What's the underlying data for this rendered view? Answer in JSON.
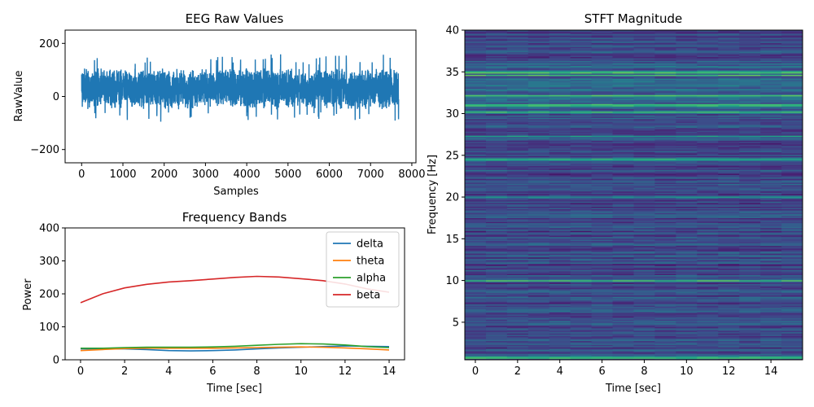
{
  "chart_data": [
    {
      "type": "line",
      "title": "EEG Raw Values",
      "xlabel": "Samples",
      "ylabel": "RawValue",
      "xlim": [
        -400,
        8100
      ],
      "ylim": [
        -250,
        250
      ],
      "xticks": [
        0,
        1000,
        2000,
        3000,
        4000,
        5000,
        6000,
        7000,
        8000
      ],
      "xtick_labels": [
        "0",
        "1000",
        "2000",
        "3000",
        "4000",
        "5000",
        "6000",
        "7000",
        "8000"
      ],
      "yticks": [
        200,
        0,
        -200
      ],
      "ytick_labels": [
        "200",
        "0",
        "−200"
      ],
      "grid": false,
      "color": "#1f77b4",
      "series": [
        {
          "sample_count": 7680,
          "approx_envelope": {
            "mean": 30,
            "typical_range": [
              -50,
              140
            ],
            "extremes": [
              -100,
              195
            ]
          }
        }
      ]
    },
    {
      "type": "line",
      "title": "Frequency Bands",
      "xlabel": "Time [sec]",
      "ylabel": "Power",
      "xlim": [
        -0.7,
        14.7
      ],
      "ylim": [
        0,
        400
      ],
      "xticks": [
        0,
        2,
        4,
        6,
        8,
        10,
        12,
        14
      ],
      "xtick_labels": [
        "0",
        "2",
        "4",
        "6",
        "8",
        "10",
        "12",
        "14"
      ],
      "yticks": [
        0,
        100,
        200,
        300,
        400
      ],
      "ytick_labels": [
        "0",
        "100",
        "200",
        "300",
        "400"
      ],
      "x": [
        0,
        1,
        2,
        3,
        4,
        5,
        6,
        7,
        8,
        9,
        10,
        11,
        12,
        13,
        14
      ],
      "legend_position": "top-right",
      "grid": false,
      "series": [
        {
          "name": "delta",
          "color": "#1f77b4",
          "values": [
            33,
            33,
            33,
            31,
            28,
            27,
            28,
            30,
            33,
            36,
            38,
            40,
            42,
            41,
            40
          ]
        },
        {
          "name": "theta",
          "color": "#ff7f0e",
          "values": [
            28,
            31,
            34,
            35,
            35,
            35,
            35,
            36,
            37,
            38,
            39,
            38,
            36,
            33,
            30
          ]
        },
        {
          "name": "alpha",
          "color": "#2ca02c",
          "values": [
            35,
            35,
            37,
            38,
            38,
            38,
            39,
            41,
            44,
            47,
            49,
            48,
            45,
            40,
            37
          ]
        },
        {
          "name": "beta",
          "color": "#d62728",
          "values": [
            173,
            200,
            218,
            229,
            236,
            240,
            245,
            250,
            253,
            251,
            246,
            240,
            230,
            215,
            205
          ]
        }
      ]
    },
    {
      "type": "heatmap",
      "title": "STFT Magnitude",
      "xlabel": "Time [sec]",
      "ylabel": "Frequency [Hz]",
      "xlim": [
        -0.5,
        15.5
      ],
      "ylim": [
        0.5,
        40
      ],
      "xticks": [
        0,
        2,
        4,
        6,
        8,
        10,
        12,
        14
      ],
      "xtick_labels": [
        "0",
        "2",
        "4",
        "6",
        "8",
        "10",
        "12",
        "14"
      ],
      "yticks": [
        5,
        10,
        15,
        20,
        25,
        30,
        35,
        40
      ],
      "ytick_labels": [
        "5",
        "10",
        "15",
        "20",
        "25",
        "30",
        "35",
        "40"
      ],
      "colormap": "viridis",
      "prominent_bands_hz": [
        0.8,
        10.0,
        20.0,
        24.5,
        27.3,
        30.2,
        31.0,
        32.2,
        34.6,
        35.0
      ]
    }
  ]
}
